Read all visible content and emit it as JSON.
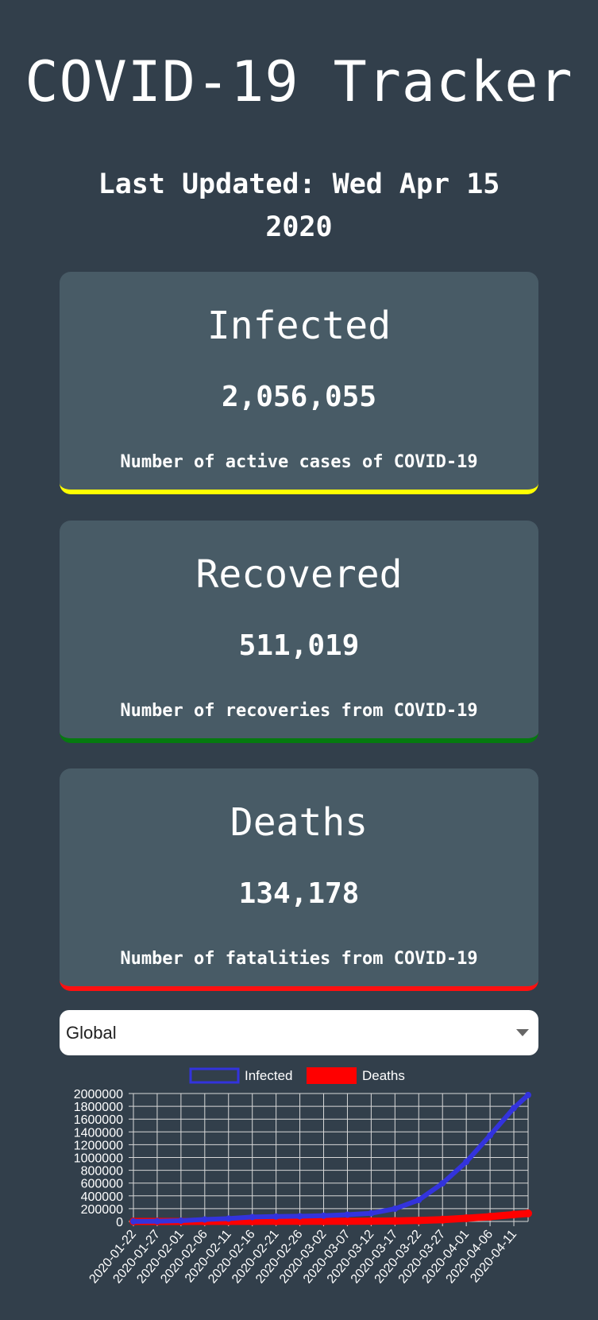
{
  "header": {
    "title": "COVID-19 Tracker",
    "updated_line1": "Last Updated: Wed Apr 15",
    "updated_line2": "2020"
  },
  "cards": {
    "infected": {
      "title": "Infected",
      "value": "2,056,055",
      "description": "Number of active cases of COVID-19",
      "accent": "#ffff00"
    },
    "recovered": {
      "title": "Recovered",
      "value": "511,019",
      "description": "Number of recoveries from COVID-19",
      "accent": "#067a10"
    },
    "deaths": {
      "title": "Deaths",
      "value": "134,178",
      "description": "Number of fatalities from COVID-19",
      "accent": "#ff1010"
    }
  },
  "country_select": {
    "value": "Global"
  },
  "chart_data": {
    "type": "line",
    "legend": [
      "Infected",
      "Deaths"
    ],
    "legend_position": "top-center",
    "grid": true,
    "ylim": [
      0,
      2000000
    ],
    "y_ticks": [
      "0",
      "200000",
      "400000",
      "600000",
      "800000",
      "1000000",
      "1200000",
      "1400000",
      "1600000",
      "1800000",
      "2000000"
    ],
    "x_ticks": [
      "2020-01-22",
      "2020-01-27",
      "2020-02-01",
      "2020-02-06",
      "2020-02-11",
      "2020-02-16",
      "2020-02-21",
      "2020-02-26",
      "2020-03-02",
      "2020-03-07",
      "2020-03-12",
      "2020-03-17",
      "2020-03-22",
      "2020-03-27",
      "2020-04-01",
      "2020-04-06",
      "2020-04-11"
    ],
    "x": [
      "2020-01-22",
      "2020-01-27",
      "2020-02-01",
      "2020-02-06",
      "2020-02-11",
      "2020-02-16",
      "2020-02-21",
      "2020-02-26",
      "2020-03-02",
      "2020-03-07",
      "2020-03-12",
      "2020-03-17",
      "2020-03-22",
      "2020-03-27",
      "2020-04-01",
      "2020-04-06",
      "2020-04-11",
      "2020-04-14"
    ],
    "series": [
      {
        "name": "Infected",
        "color": "#3333dd",
        "values": [
          555,
          2900,
          12000,
          30800,
          44800,
          69000,
          76800,
          81400,
          90300,
          105800,
          128300,
          198000,
          335000,
          595000,
          932000,
          1346000,
          1773000,
          1976000
        ]
      },
      {
        "name": "Deaths",
        "color": "#ff0000",
        "values": [
          17,
          82,
          259,
          636,
          1113,
          1666,
          2360,
          2770,
          3085,
          3557,
          4720,
          7900,
          14700,
          27200,
          50000,
          74700,
          108500,
          126000
        ]
      }
    ]
  }
}
